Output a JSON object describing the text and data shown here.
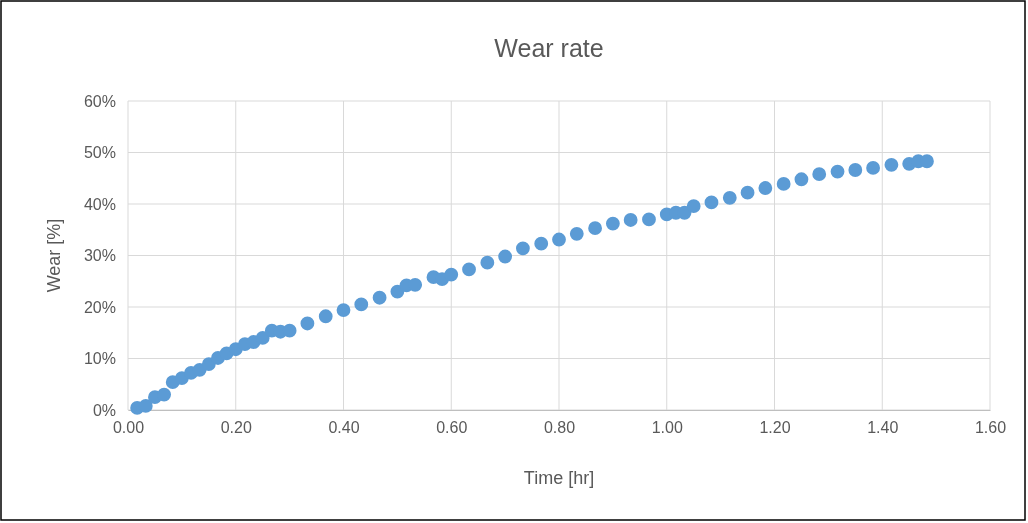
{
  "chart_data": {
    "type": "scatter",
    "title": "Wear rate",
    "xlabel": "Time [hr]",
    "ylabel": "Wear [%]",
    "x": [
      0.017,
      0.033,
      0.05,
      0.067,
      0.083,
      0.1,
      0.117,
      0.133,
      0.15,
      0.167,
      0.183,
      0.2,
      0.217,
      0.233,
      0.25,
      0.267,
      0.283,
      0.3,
      0.333,
      0.367,
      0.4,
      0.433,
      0.467,
      0.5,
      0.517,
      0.533,
      0.567,
      0.583,
      0.6,
      0.633,
      0.667,
      0.7,
      0.733,
      0.767,
      0.8,
      0.833,
      0.867,
      0.9,
      0.933,
      0.967,
      1.0,
      1.017,
      1.033,
      1.05,
      1.083,
      1.117,
      1.15,
      1.183,
      1.217,
      1.25,
      1.283,
      1.317,
      1.35,
      1.383,
      1.417,
      1.45,
      1.467,
      1.483
    ],
    "series": [
      {
        "color": "#5b9bd5",
        "values": [
          0.4,
          0.8,
          2.5,
          3,
          5.4,
          6.2,
          7.2,
          7.8,
          8.9,
          10.1,
          11,
          11.8,
          12.8,
          13.2,
          14,
          15.4,
          15.2,
          15.4,
          16.8,
          18.2,
          19.4,
          20.5,
          21.8,
          23,
          24.2,
          24.3,
          25.8,
          25.4,
          26.3,
          27.3,
          28.6,
          29.8,
          31.4,
          32.3,
          33.1,
          34.2,
          35.3,
          36.2,
          36.9,
          37,
          38,
          38.3,
          38.3,
          39.6,
          40.3,
          41.2,
          42.2,
          43.1,
          43.9,
          44.8,
          45.8,
          46.3,
          46.6,
          47,
          47.6,
          47.8,
          48.3,
          48.3
        ]
      }
    ],
    "xlim": [
      0,
      1.6
    ],
    "xticks": [
      {
        "value": 0,
        "label": "0.00"
      },
      {
        "value": 0.2,
        "label": "0.20"
      },
      {
        "value": 0.4,
        "label": "0.40"
      },
      {
        "value": 0.6,
        "label": "0.60"
      },
      {
        "value": 0.8,
        "label": "0.80"
      },
      {
        "value": 1,
        "label": "1.00"
      },
      {
        "value": 1.2,
        "label": "1.20"
      },
      {
        "value": 1.4,
        "label": "1.40"
      },
      {
        "value": 1.6,
        "label": "1.60"
      }
    ],
    "ylim": [
      0,
      60
    ],
    "yticks": [
      {
        "value": 0,
        "label": "0%"
      },
      {
        "value": 10,
        "label": "10%"
      },
      {
        "value": 20,
        "label": "20%"
      },
      {
        "value": 30,
        "label": "30%"
      },
      {
        "value": 40,
        "label": "40%"
      },
      {
        "value": 50,
        "label": "50%"
      },
      {
        "value": 60,
        "label": "60%"
      }
    ],
    "grid": true,
    "marker": "circle"
  }
}
